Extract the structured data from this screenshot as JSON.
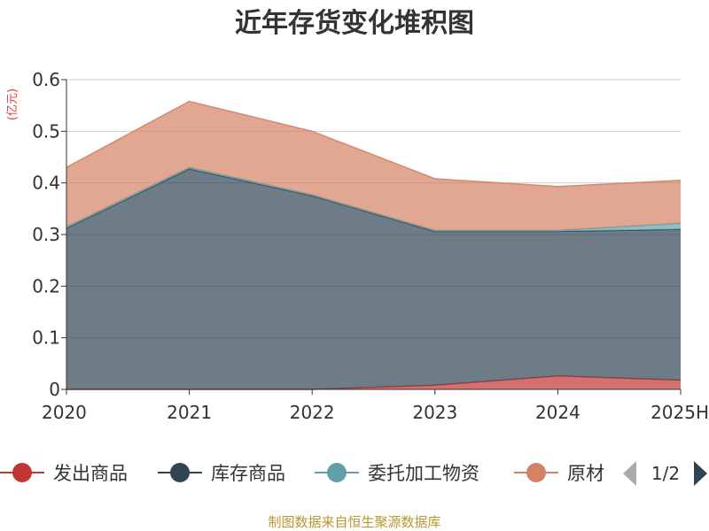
{
  "chart_data": {
    "type": "area",
    "stacked": true,
    "title": "近年存货变化堆积图",
    "ylabel": "(亿元)",
    "categories": [
      "2020",
      "2021",
      "2022",
      "2023",
      "2024",
      "2025H"
    ],
    "ylim": [
      0,
      0.6
    ],
    "yticks": [
      "0",
      "0.1",
      "0.2",
      "0.3",
      "0.4",
      "0.5",
      "0.6"
    ],
    "grid": true,
    "series": [
      {
        "name": "发出商品",
        "color": "#c23531",
        "values": [
          0,
          0,
          0,
          0.008,
          0.026,
          0.018
        ]
      },
      {
        "name": "库存商品",
        "color": "#2f4554",
        "values": [
          0.312,
          0.427,
          0.375,
          0.298,
          0.28,
          0.292
        ]
      },
      {
        "name": "委托加工物资",
        "color": "#61a0a8",
        "values": [
          0.003,
          0.003,
          0.002,
          0.002,
          0.002,
          0.012
        ]
      },
      {
        "name": "原材料",
        "color": "#d48265",
        "values": [
          0.115,
          0.128,
          0.123,
          0.1,
          0.085,
          0.083
        ]
      }
    ],
    "legend": {
      "position": "bottom",
      "visible_labels": [
        "发出商品",
        "库存商品",
        "委托加工物资",
        "原材"
      ],
      "page": "1/2"
    },
    "source": "制图数据来自恒生聚源数据库"
  }
}
